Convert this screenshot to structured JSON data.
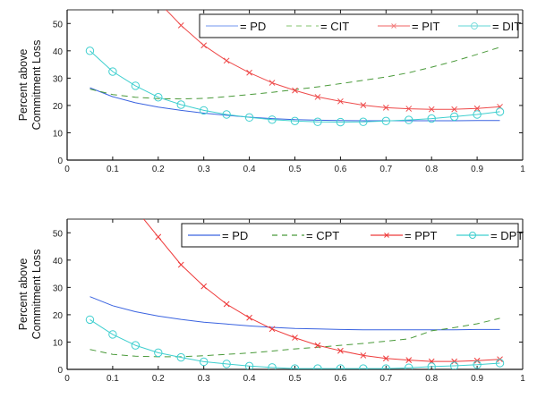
{
  "chart_data": [
    {
      "type": "line",
      "ylabel": [
        "Percent above",
        "Commitment Loss"
      ],
      "xlabel": "",
      "xlim": [
        0,
        1
      ],
      "ylim": [
        0,
        55
      ],
      "xticks": [
        0,
        0.1,
        0.2,
        0.3,
        0.4,
        0.5,
        0.6,
        0.7,
        0.8,
        0.9,
        1
      ],
      "xtick_labels": [
        "0",
        "0.1",
        "0.2",
        "0.3",
        "0.4",
        "0.5",
        "0.6",
        "0.7",
        "0.8",
        "0.9",
        "1"
      ],
      "yticks": [
        0,
        10,
        20,
        30,
        40,
        50
      ],
      "ytick_labels": [
        "0",
        "10",
        "20",
        "30",
        "40",
        "50"
      ],
      "grid": false,
      "legend_position": "top-right",
      "x": [
        0.05,
        0.1,
        0.15,
        0.2,
        0.25,
        0.3,
        0.35,
        0.4,
        0.45,
        0.5,
        0.55,
        0.6,
        0.65,
        0.7,
        0.75,
        0.8,
        0.85,
        0.9,
        0.95
      ],
      "series": [
        {
          "name": "PD",
          "legend_label": "= PD",
          "color": "#3a63e0",
          "legend_color": "#8eaaf2",
          "style": "solid",
          "marker": "none",
          "values": [
            26.5,
            23.2,
            21.0,
            19.4,
            18.2,
            17.2,
            16.4,
            15.7,
            15.2,
            14.8,
            14.6,
            14.5,
            14.4,
            14.4,
            14.4,
            14.4,
            14.4,
            14.5,
            14.5
          ]
        },
        {
          "name": "CIT",
          "legend_label": "= CIT",
          "color": "#4a9a3a",
          "legend_color": "#9ccf8a",
          "style": "dashed",
          "marker": "none",
          "values": [
            26.0,
            24.0,
            23.0,
            22.5,
            22.4,
            22.6,
            23.2,
            24.0,
            24.8,
            25.8,
            26.8,
            28.0,
            29.2,
            30.4,
            32.0,
            34.0,
            36.2,
            38.7,
            41.3
          ]
        },
        {
          "name": "PIT",
          "legend_label": "= PIT",
          "color": "#ee4a4a",
          "legend_color": "#f28080",
          "style": "solid",
          "marker": "x",
          "values": [
            null,
            null,
            null,
            58.0,
            49.3,
            42.0,
            36.4,
            32.0,
            28.3,
            25.5,
            23.1,
            21.5,
            20.1,
            19.2,
            18.8,
            18.6,
            18.6,
            18.9,
            19.5
          ]
        },
        {
          "name": "DIT",
          "legend_label": "= DIT",
          "color": "#3fcfcf",
          "legend_color": "#7fdede",
          "style": "solid",
          "marker": "o",
          "values": [
            40.0,
            32.4,
            27.2,
            23.0,
            20.3,
            18.2,
            16.7,
            15.6,
            14.8,
            14.3,
            14.0,
            13.9,
            14.0,
            14.3,
            14.7,
            15.2,
            15.9,
            16.7,
            17.7
          ]
        }
      ]
    },
    {
      "type": "line",
      "ylabel": [
        "Percent above",
        "Commitment Loss"
      ],
      "xlabel": "",
      "xlim": [
        0,
        1
      ],
      "ylim": [
        0,
        55
      ],
      "xticks": [
        0,
        0.1,
        0.2,
        0.3,
        0.4,
        0.5,
        0.6,
        0.7,
        0.8,
        0.9,
        1
      ],
      "xtick_labels": [
        "0",
        "0.1",
        "0.2",
        "0.3",
        "0.4",
        "0.5",
        "0.6",
        "0.7",
        "0.8",
        "0.9",
        "1"
      ],
      "yticks": [
        0,
        10,
        20,
        30,
        40,
        50
      ],
      "ytick_labels": [
        "0",
        "10",
        "20",
        "30",
        "40",
        "50"
      ],
      "grid": false,
      "legend_position": "top-right",
      "x": [
        0.05,
        0.1,
        0.15,
        0.2,
        0.25,
        0.3,
        0.35,
        0.4,
        0.45,
        0.5,
        0.55,
        0.6,
        0.65,
        0.7,
        0.75,
        0.8,
        0.85,
        0.9,
        0.95
      ],
      "series": [
        {
          "name": "PD",
          "legend_label": "= PD",
          "color": "#3a63e0",
          "legend_color": "#3a63e0",
          "style": "solid",
          "marker": "none",
          "values": [
            26.6,
            23.3,
            21.1,
            19.5,
            18.3,
            17.3,
            16.6,
            15.9,
            15.4,
            15.0,
            14.8,
            14.6,
            14.5,
            14.5,
            14.5,
            14.5,
            14.5,
            14.6,
            14.6
          ]
        },
        {
          "name": "CPT",
          "legend_label": "= CPT",
          "color": "#4a9a3a",
          "legend_color": "#4a9a3a",
          "style": "dashed",
          "marker": "none",
          "values": [
            7.3,
            5.5,
            4.8,
            4.6,
            4.6,
            5.0,
            5.5,
            6.0,
            6.7,
            7.5,
            8.1,
            8.8,
            9.5,
            10.3,
            11.2,
            14.1,
            15.3,
            16.7,
            18.7
          ]
        },
        {
          "name": "PPT",
          "legend_label": "= PPT",
          "color": "#ee3a3a",
          "legend_color": "#ee3a3a",
          "style": "solid",
          "marker": "x",
          "values": [
            null,
            null,
            null,
            48.5,
            38.3,
            30.4,
            23.9,
            18.9,
            14.8,
            11.6,
            8.8,
            6.8,
            5.1,
            4.0,
            3.4,
            2.9,
            2.9,
            3.2,
            3.7
          ]
        },
        {
          "name": "DPT",
          "legend_label": "= DPT",
          "color": "#3fcfcf",
          "legend_color": "#3fcfcf",
          "style": "solid",
          "marker": "o",
          "values": [
            18.2,
            12.8,
            8.8,
            6.1,
            4.4,
            2.8,
            2.0,
            1.2,
            0.7,
            0.3,
            0.3,
            0.3,
            0.3,
            0.3,
            0.6,
            1.0,
            1.3,
            1.7,
            2.3
          ]
        }
      ]
    }
  ]
}
